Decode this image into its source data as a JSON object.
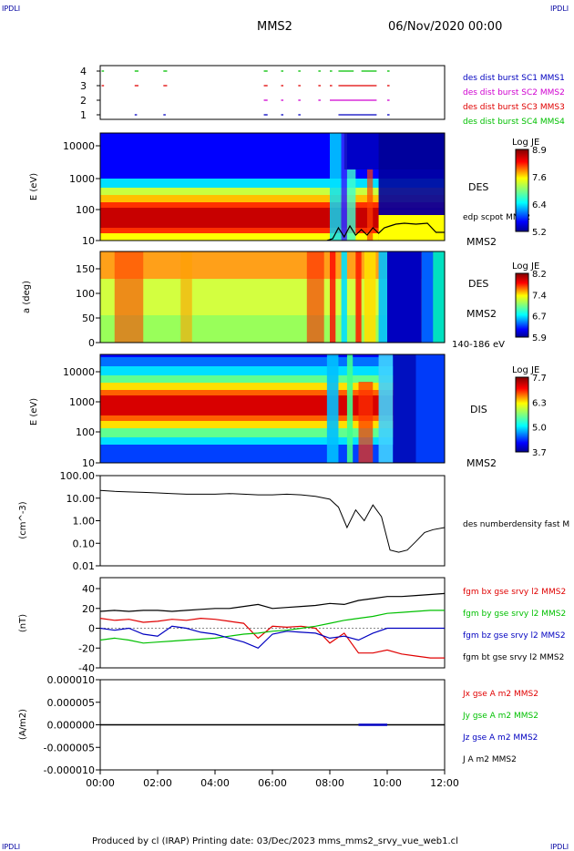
{
  "header": {
    "corner_left": "IPDLI",
    "corner_right": "IPDLI",
    "spacecraft": "MMS2",
    "datetime": "06/Nov/2020 00:00"
  },
  "footer": {
    "corner_left": "IPDLI",
    "corner_right": "IPDLI",
    "credit": "Produced by cl (IRAP)   Printing date: 03/Dec/2023   mms_mms2_srvy_vue_web1.cl"
  },
  "colors": {
    "red": "#e00000",
    "green": "#00c000",
    "blue": "#0000c0",
    "magenta": "#d000d0",
    "black": "#000000"
  },
  "chart_data": [
    {
      "type": "scatter",
      "panel": "burst",
      "yticks": [
        "4",
        "3",
        "2",
        "1"
      ],
      "legend": [
        {
          "label": "des dist burst SC1 MMS1",
          "color": "#0000c0"
        },
        {
          "label": "des dist burst SC2 MMS2",
          "color": "#d000d0"
        },
        {
          "label": "des dist burst SC3 MMS3",
          "color": "#e00000"
        },
        {
          "label": "des dist burst SC4 MMS4",
          "color": "#00c000"
        }
      ],
      "segments": [
        {
          "row": 4,
          "color": "#00c000",
          "ranges": [
            [
              0.05,
              0.1
            ],
            [
              1.2,
              1.3
            ],
            [
              2.2,
              2.3
            ],
            [
              5.7,
              5.8
            ],
            [
              6.3,
              6.35
            ],
            [
              6.9,
              6.95
            ],
            [
              7.6,
              7.65
            ],
            [
              8.0,
              8.05
            ],
            [
              8.3,
              8.8
            ],
            [
              9.1,
              9.6
            ],
            [
              10.0,
              10.05
            ]
          ]
        },
        {
          "row": 3,
          "color": "#e00000",
          "ranges": [
            [
              0.05,
              0.1
            ],
            [
              1.2,
              1.3
            ],
            [
              2.2,
              2.3
            ],
            [
              5.7,
              5.8
            ],
            [
              6.3,
              6.35
            ],
            [
              6.9,
              6.95
            ],
            [
              7.6,
              7.65
            ],
            [
              8.0,
              8.05
            ],
            [
              8.3,
              9.6
            ],
            [
              10.0,
              10.05
            ]
          ]
        },
        {
          "row": 2,
          "color": "#d000d0",
          "ranges": [
            [
              5.7,
              5.8
            ],
            [
              6.3,
              6.35
            ],
            [
              6.9,
              6.95
            ],
            [
              7.6,
              7.65
            ],
            [
              8.0,
              9.6
            ],
            [
              10.0,
              10.05
            ]
          ]
        },
        {
          "row": 1,
          "color": "#0000c0",
          "ranges": [
            [
              1.2,
              1.25
            ],
            [
              2.2,
              2.25
            ],
            [
              5.7,
              5.8
            ],
            [
              6.3,
              6.35
            ],
            [
              6.9,
              6.95
            ],
            [
              8.3,
              9.6
            ],
            [
              10.0,
              10.05
            ]
          ]
        }
      ]
    },
    {
      "type": "heatmap",
      "panel": "electron_energy",
      "ylabel": "E (eV)",
      "yticks": [
        "10000",
        "1000",
        "100",
        "10"
      ],
      "label": "DES",
      "label2": "MMS2",
      "overlay_label": "edp scpot MMS2",
      "colorbar": {
        "title": "Log JE",
        "ticks": [
          "8.9",
          "7.6",
          "6.4",
          "5.2"
        ]
      }
    },
    {
      "type": "heatmap",
      "panel": "electron_pitch_angle",
      "ylabel": "a (deg)",
      "yticks": [
        "150",
        "100",
        "50",
        "0"
      ],
      "label": "DES",
      "label2": "MMS2",
      "energy_label": "140-186 eV",
      "colorbar": {
        "title": "Log JE",
        "ticks": [
          "8.2",
          "7.4",
          "6.7",
          "5.9"
        ]
      }
    },
    {
      "type": "heatmap",
      "panel": "ion_energy",
      "ylabel": "E (eV)",
      "yticks": [
        "10000",
        "1000",
        "100",
        "10"
      ],
      "label": "DIS",
      "label2": "MMS2",
      "colorbar": {
        "title": "Log JE",
        "ticks": [
          "7.7",
          "6.3",
          "5.0",
          "3.7"
        ]
      }
    },
    {
      "type": "line",
      "panel": "density",
      "ylabel": "(cm^-3)",
      "yticks": [
        "100.00",
        "10.00",
        "1.00",
        "0.10",
        "0.01"
      ],
      "legend": [
        {
          "label": "des numberdensity fast M",
          "color": "#000000"
        }
      ],
      "x": [
        0,
        0.5,
        1,
        1.5,
        2,
        2.5,
        3,
        3.5,
        4,
        4.5,
        5,
        5.5,
        6,
        6.5,
        7,
        7.5,
        8,
        8.3,
        8.6,
        8.9,
        9.2,
        9.5,
        9.8,
        10.1,
        10.4,
        10.7,
        11.0,
        11.3,
        11.6,
        12.0
      ],
      "y": [
        22,
        20,
        19,
        18,
        17,
        16,
        15,
        15,
        15,
        16,
        15,
        14,
        14,
        15,
        14,
        12,
        9,
        4,
        0.5,
        3,
        1,
        5,
        1.5,
        0.05,
        0.04,
        0.05,
        0.12,
        0.3,
        0.4,
        0.5
      ]
    },
    {
      "type": "line",
      "panel": "magnetic_field",
      "ylabel": "(nT)",
      "yticks": [
        "40",
        "20",
        "0",
        "-20",
        "-40"
      ],
      "x": [
        0,
        0.5,
        1,
        1.5,
        2,
        2.5,
        3,
        3.5,
        4,
        4.5,
        5,
        5.5,
        6,
        6.5,
        7,
        7.5,
        8,
        8.5,
        9,
        9.5,
        10,
        10.5,
        11,
        11.5,
        12
      ],
      "series": [
        {
          "name": "fgm bx gse srvy l2 MMS2",
          "color": "#e00000",
          "values": [
            10,
            8,
            9,
            6,
            7,
            9,
            8,
            10,
            9,
            7,
            5,
            -10,
            2,
            1,
            2,
            0,
            -15,
            -5,
            -25,
            -25,
            -22,
            -26,
            -28,
            -30,
            -30
          ]
        },
        {
          "name": "fgm by gse srvy l2 MMS2",
          "color": "#00c000",
          "values": [
            -12,
            -10,
            -12,
            -15,
            -14,
            -13,
            -12,
            -11,
            -10,
            -8,
            -6,
            -5,
            -3,
            -2,
            0,
            2,
            5,
            8,
            10,
            12,
            15,
            16,
            17,
            18,
            18
          ]
        },
        {
          "name": "fgm bz gse srvy l2 MMS2",
          "color": "#0000c0",
          "values": [
            0,
            -2,
            0,
            -6,
            -8,
            2,
            0,
            -4,
            -6,
            -10,
            -14,
            -20,
            -6,
            -3,
            -4,
            -5,
            -10,
            -8,
            -12,
            -5,
            0,
            0,
            0,
            0,
            0
          ]
        },
        {
          "name": "fgm bt gse srvy l2 MMS2",
          "color": "#000000",
          "values": [
            17,
            18,
            17,
            18,
            18,
            17,
            18,
            19,
            20,
            20,
            22,
            24,
            20,
            21,
            22,
            23,
            25,
            24,
            28,
            30,
            32,
            32,
            33,
            34,
            35
          ]
        }
      ]
    },
    {
      "type": "line",
      "panel": "current_density",
      "ylabel": "(A/m2)",
      "yticks": [
        "0.000010",
        "0.000005",
        "0.000000",
        "-0.000005",
        "-0.000010"
      ],
      "xticks": [
        "00:00",
        "02:00",
        "04:00",
        "06:00",
        "08:00",
        "10:00",
        "12:00"
      ],
      "series": [
        {
          "name": "Jx gse A m2 MMS2",
          "color": "#e00000"
        },
        {
          "name": "Jy gse A m2 MMS2",
          "color": "#00c000"
        },
        {
          "name": "Jz gse A m2 MMS2",
          "color": "#0000c0"
        },
        {
          "name": "J A m2 MMS2",
          "color": "#000000"
        }
      ]
    }
  ]
}
